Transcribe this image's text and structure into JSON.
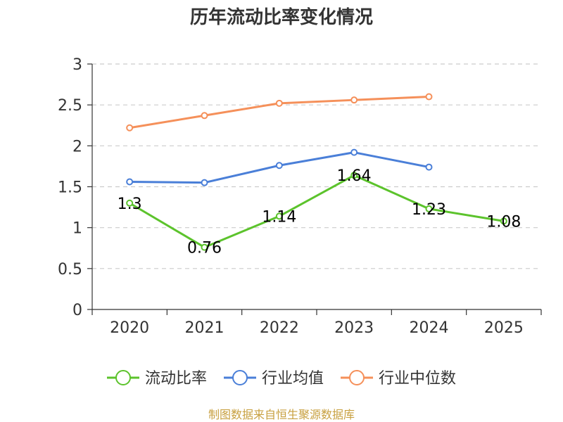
{
  "chart_data": {
    "type": "line",
    "title": "历年流动比率变化情况",
    "categories": [
      "2020",
      "2021",
      "2022",
      "2023",
      "2024",
      "2025"
    ],
    "ylim": [
      0,
      3
    ],
    "yticks": [
      0,
      0.5,
      1,
      1.5,
      2,
      2.5,
      3
    ],
    "ytick_labels": [
      "0",
      "0.5",
      "1",
      "1.5",
      "2",
      "2.5",
      "3"
    ],
    "grid": true,
    "legend_position": "bottom",
    "series": [
      {
        "name": "流动比率",
        "color": "#5cc32c",
        "values": [
          1.3,
          0.76,
          1.14,
          1.64,
          1.23,
          1.08
        ],
        "labels": [
          "1.3",
          "0.76",
          "1.14",
          "1.64",
          "1.23",
          "1.08"
        ],
        "show_labels": true
      },
      {
        "name": "行业均值",
        "color": "#4a7fd8",
        "values": [
          1.56,
          1.55,
          1.76,
          1.92,
          1.74,
          null
        ],
        "show_labels": false
      },
      {
        "name": "行业中位数",
        "color": "#f5905a",
        "values": [
          2.22,
          2.37,
          2.52,
          2.56,
          2.6,
          null
        ],
        "show_labels": false
      }
    ]
  },
  "source_text": "制图数据来自恒生聚源数据库"
}
